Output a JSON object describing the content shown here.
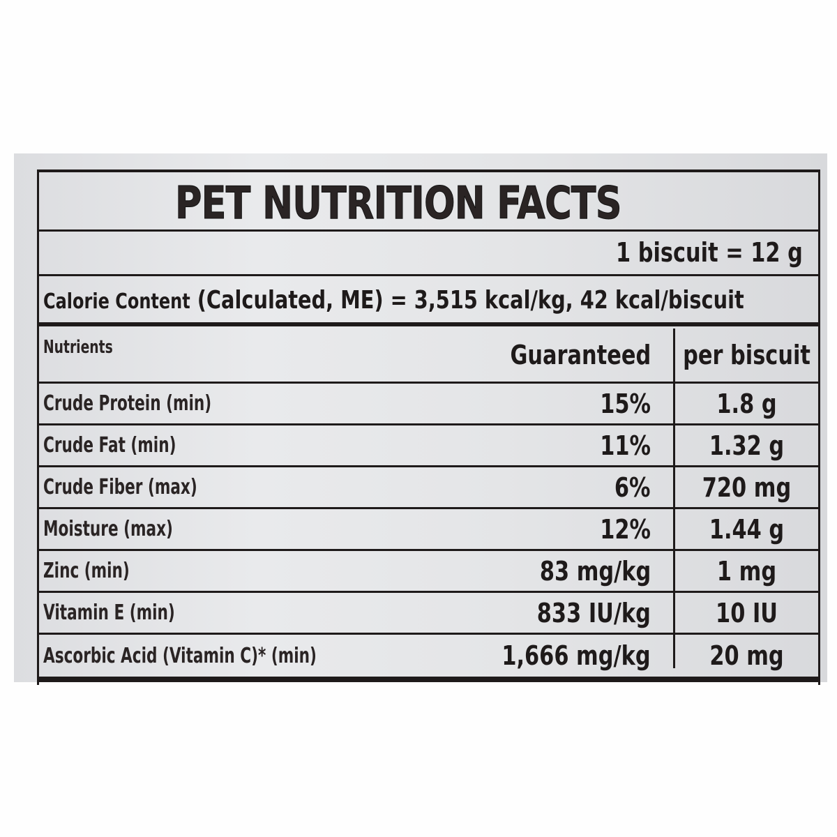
{
  "label": {
    "title": "PET NUTRITION FACTS",
    "serving_size": "1 biscuit = 12 g",
    "calorie_label": "Calorie Content",
    "calorie_value": "(Calculated, ME) = 3,515 kcal/kg, 42 kcal/biscuit",
    "columns": [
      "Nutrients",
      "Guaranteed",
      "per biscuit"
    ],
    "rows": [
      {
        "nutrient": "Crude Protein (min)",
        "guaranteed": "15%",
        "per_biscuit": "1.8 g"
      },
      {
        "nutrient": "Crude Fat (min)",
        "guaranteed": "11%",
        "per_biscuit": "1.32 g"
      },
      {
        "nutrient": "Crude Fiber  (max)",
        "guaranteed": "6%",
        "per_biscuit": "720 mg"
      },
      {
        "nutrient": "Moisture (max)",
        "guaranteed": "12%",
        "per_biscuit": "1.44 g"
      },
      {
        "nutrient": "Zinc (min)",
        "guaranteed": "83 mg/kg",
        "per_biscuit": "1 mg"
      },
      {
        "nutrient": "Vitamin E (min)",
        "guaranteed": "833 IU/kg",
        "per_biscuit": "10 IU"
      },
      {
        "nutrient": "Ascorbic Acid (Vitamin C)* (min)",
        "guaranteed": "1,666 mg/kg",
        "per_biscuit": "20 mg"
      }
    ]
  }
}
